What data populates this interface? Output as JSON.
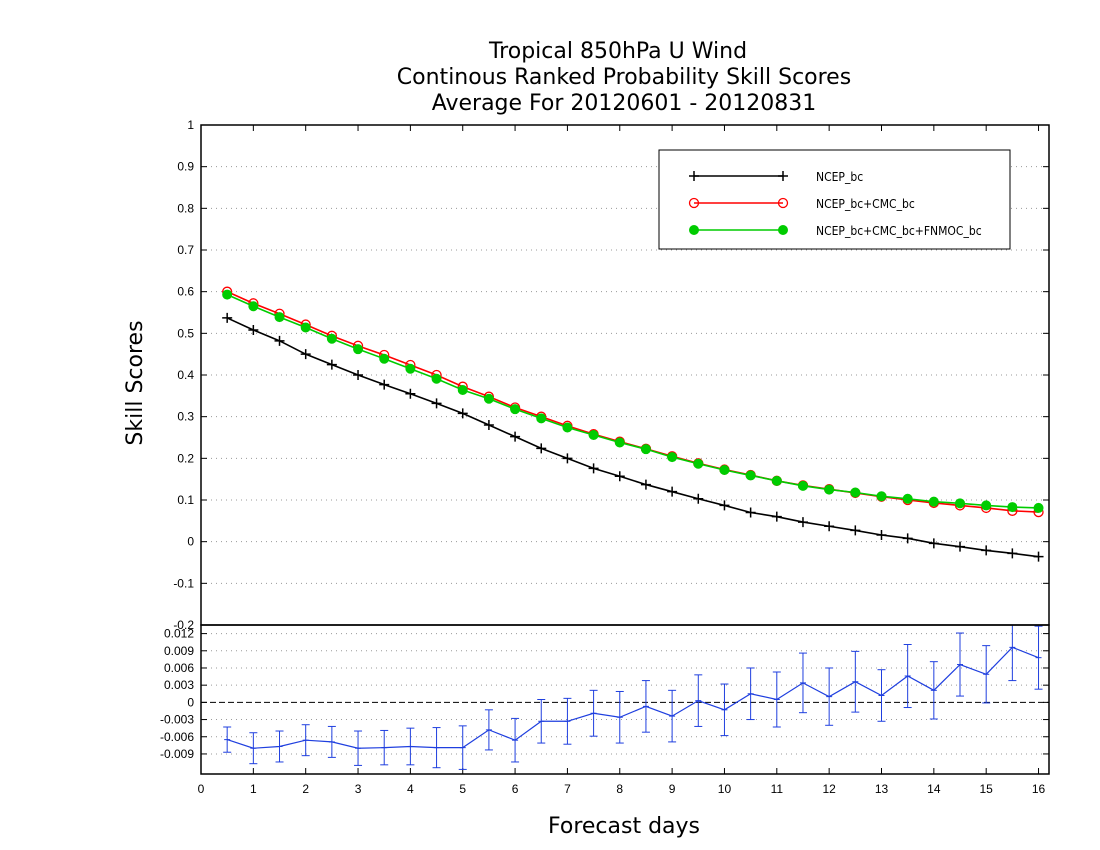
{
  "chart_data": {
    "type": "line",
    "title": [
      "Tropical 850hPa U Wind",
      "Continous Ranked Probability Skill Scores",
      "Average For 20120601 - 20120831"
    ],
    "xlabel": "Forecast days",
    "ylabel": "Skill Scores",
    "xlim": [
      0,
      16.2
    ],
    "x_ticks": [
      "0",
      "1",
      "2",
      "3",
      "4",
      "5",
      "6",
      "7",
      "8",
      "9",
      "10",
      "11",
      "12",
      "13",
      "14",
      "15",
      "16"
    ],
    "main": {
      "ylim": [
        -0.2,
        1.0
      ],
      "y_ticks": [
        "1",
        "0.9",
        "0.8",
        "0.7",
        "0.6",
        "0.5",
        "0.4",
        "0.3",
        "0.2",
        "0.1",
        "0",
        "-0.1",
        "-0.2"
      ],
      "legend_position": "top-right",
      "x": [
        0.5,
        1,
        1.5,
        2,
        2.5,
        3,
        3.5,
        4,
        4.5,
        5,
        5.5,
        6,
        6.5,
        7,
        7.5,
        8,
        8.5,
        9,
        9.5,
        10,
        10.5,
        11,
        11.5,
        12,
        12.5,
        13,
        13.5,
        14,
        14.5,
        15,
        15.5,
        16
      ],
      "series": [
        {
          "name": "NCEP_bc",
          "color": "#000000",
          "marker": "plus",
          "values": [
            0.537,
            0.508,
            0.482,
            0.45,
            0.425,
            0.4,
            0.377,
            0.355,
            0.332,
            0.308,
            0.28,
            0.252,
            0.224,
            0.2,
            0.176,
            0.157,
            0.137,
            0.12,
            0.103,
            0.087,
            0.07,
            0.06,
            0.047,
            0.037,
            0.027,
            0.016,
            0.008,
            -0.004,
            -0.012,
            -0.021,
            -0.028,
            -0.036
          ]
        },
        {
          "name": "NCEP_bc+CMC_bc",
          "color": "#ff0000",
          "marker": "open-circle",
          "values": [
            0.6,
            0.572,
            0.547,
            0.521,
            0.494,
            0.47,
            0.448,
            0.424,
            0.4,
            0.372,
            0.348,
            0.322,
            0.3,
            0.278,
            0.258,
            0.24,
            0.223,
            0.205,
            0.188,
            0.173,
            0.16,
            0.146,
            0.135,
            0.126,
            0.117,
            0.108,
            0.1,
            0.093,
            0.087,
            0.081,
            0.074,
            0.071
          ]
        },
        {
          "name": "NCEP_bc+CMC_bc+FNMOC_bc",
          "color": "#00cc00",
          "marker": "filled-circle",
          "values": [
            0.593,
            0.565,
            0.539,
            0.514,
            0.487,
            0.462,
            0.439,
            0.415,
            0.391,
            0.364,
            0.343,
            0.318,
            0.296,
            0.274,
            0.256,
            0.238,
            0.222,
            0.203,
            0.187,
            0.172,
            0.159,
            0.146,
            0.134,
            0.125,
            0.118,
            0.109,
            0.103,
            0.096,
            0.092,
            0.087,
            0.083,
            0.081
          ]
        }
      ]
    },
    "difference": {
      "ylim": [
        -0.0125,
        0.0135
      ],
      "y_ticks": [
        "0.012",
        "0.009",
        "0.006",
        "0.003",
        "0",
        "-0.003",
        "-0.006",
        "-0.009"
      ],
      "color": "#1f3fdf",
      "x": [
        0.5,
        1,
        1.5,
        2,
        2.5,
        3,
        3.5,
        4,
        4.5,
        5,
        5.5,
        6,
        6.5,
        7,
        7.5,
        8,
        8.5,
        9,
        9.5,
        10,
        10.5,
        11,
        11.5,
        12,
        12.5,
        13,
        13.5,
        14,
        14.5,
        15,
        15.5,
        16
      ],
      "values": [
        -0.0065,
        -0.008,
        -0.0077,
        -0.0066,
        -0.0069,
        -0.008,
        -0.0079,
        -0.0077,
        -0.0079,
        -0.0079,
        -0.0048,
        -0.0066,
        -0.0033,
        -0.0033,
        -0.0019,
        -0.0026,
        -0.0007,
        -0.0024,
        0.0003,
        -0.0013,
        0.0015,
        0.0005,
        0.0034,
        0.001,
        0.0036,
        0.0012,
        0.0046,
        0.0021,
        0.0066,
        0.0049,
        0.0096,
        0.0078
      ],
      "errors": [
        0.0022,
        0.0027,
        0.0027,
        0.0027,
        0.0027,
        0.003,
        0.003,
        0.0032,
        0.0035,
        0.0038,
        0.0035,
        0.0038,
        0.0038,
        0.004,
        0.004,
        0.0045,
        0.0045,
        0.0045,
        0.0045,
        0.0045,
        0.0045,
        0.0048,
        0.0052,
        0.005,
        0.0053,
        0.0045,
        0.0055,
        0.005,
        0.0055,
        0.005,
        0.0058,
        0.0055
      ]
    }
  }
}
